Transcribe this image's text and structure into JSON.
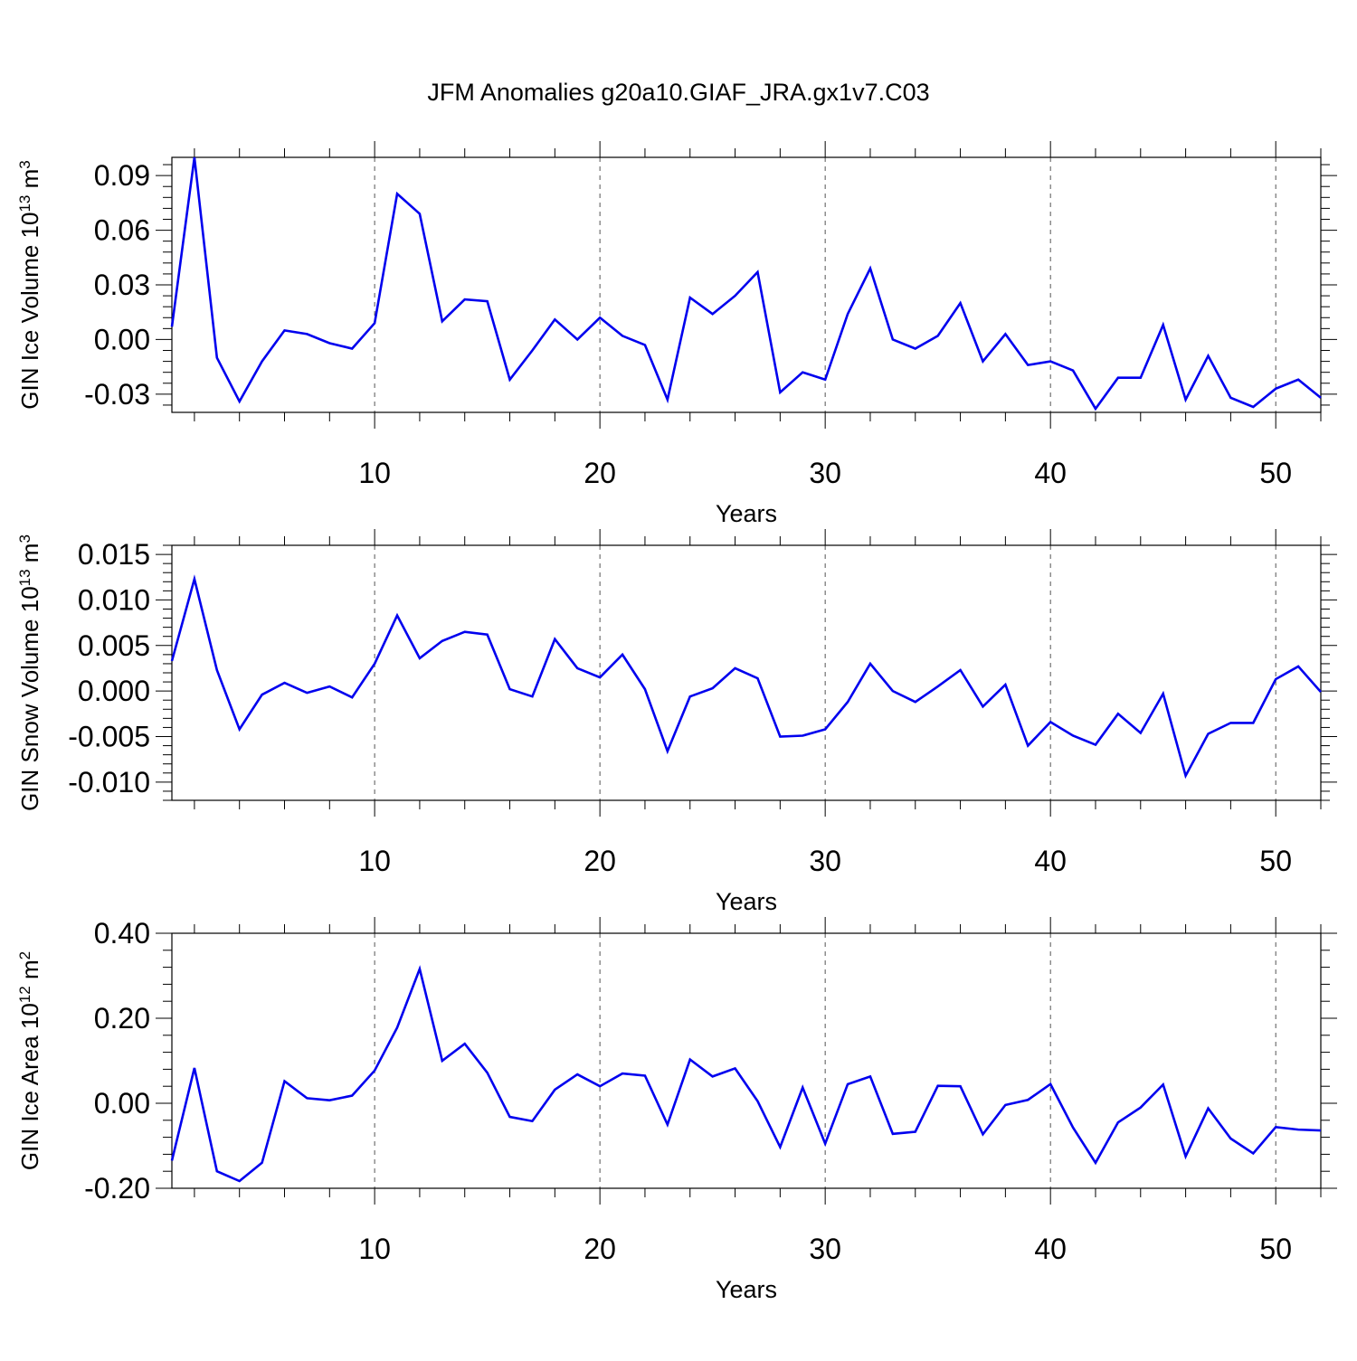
{
  "title": "JFM Anomalies g20a10.GIAF_JRA.gx1v7.C03",
  "colors": {
    "line": "#0000ee",
    "axis": "#000000",
    "grid": "#555555"
  },
  "chart_data": [
    {
      "type": "line",
      "name": "ice-volume",
      "ylabel": {
        "main": "GIN Ice Volume 10",
        "sup": "13",
        "mid": " m",
        "sup2": "3"
      },
      "xlabel": "Years",
      "xlim": [
        1,
        52
      ],
      "xticks": [
        10,
        20,
        30,
        40,
        50
      ],
      "xtick_labels": [
        "10",
        "20",
        "30",
        "40",
        "50"
      ],
      "ylim": [
        -0.04,
        0.1
      ],
      "yticks": [
        -0.03,
        0.0,
        0.03,
        0.06,
        0.09
      ],
      "ytick_labels": [
        "-0.03",
        "0.00",
        "0.03",
        "0.06",
        "0.09"
      ],
      "x": [
        1,
        2,
        3,
        4,
        5,
        6,
        7,
        8,
        9,
        10,
        11,
        12,
        13,
        14,
        15,
        16,
        17,
        18,
        19,
        20,
        21,
        22,
        23,
        24,
        25,
        26,
        27,
        28,
        29,
        30,
        31,
        32,
        33,
        34,
        35,
        36,
        37,
        38,
        39,
        40,
        41,
        42,
        43,
        44,
        45,
        46,
        47,
        48,
        49,
        50,
        51,
        52
      ],
      "values": [
        0.007,
        0.1,
        -0.01,
        -0.034,
        -0.012,
        0.005,
        0.003,
        -0.002,
        -0.005,
        0.009,
        0.08,
        0.069,
        0.01,
        0.022,
        0.021,
        -0.022,
        -0.006,
        0.011,
        0.0,
        0.012,
        0.002,
        -0.003,
        -0.033,
        0.023,
        0.014,
        0.024,
        0.037,
        -0.029,
        -0.018,
        -0.022,
        0.014,
        0.039,
        0.0,
        -0.005,
        0.002,
        0.02,
        -0.012,
        0.003,
        -0.014,
        -0.012,
        -0.017,
        -0.038,
        -0.021,
        -0.021,
        0.008,
        -0.033,
        -0.009,
        -0.032,
        -0.037,
        -0.027,
        -0.022,
        -0.032
      ]
    },
    {
      "type": "line",
      "name": "snow-volume",
      "ylabel": {
        "main": "GIN Snow Volume 10",
        "sup": "13",
        "mid": " m",
        "sup2": "3"
      },
      "xlabel": "Years",
      "xlim": [
        1,
        52
      ],
      "xticks": [
        10,
        20,
        30,
        40,
        50
      ],
      "xtick_labels": [
        "10",
        "20",
        "30",
        "40",
        "50"
      ],
      "ylim": [
        -0.012,
        0.016
      ],
      "yticks": [
        -0.01,
        -0.005,
        0.0,
        0.005,
        0.01,
        0.015
      ],
      "ytick_labels": [
        "-0.010",
        "-0.005",
        "0.000",
        "0.005",
        "0.010",
        "0.015"
      ],
      "x": [
        1,
        2,
        3,
        4,
        5,
        6,
        7,
        8,
        9,
        10,
        11,
        12,
        13,
        14,
        15,
        16,
        17,
        18,
        19,
        20,
        21,
        22,
        23,
        24,
        25,
        26,
        27,
        28,
        29,
        30,
        31,
        32,
        33,
        34,
        35,
        36,
        37,
        38,
        39,
        40,
        41,
        42,
        43,
        44,
        45,
        46,
        47,
        48,
        49,
        50,
        51,
        52
      ],
      "values": [
        0.0033,
        0.0123,
        0.0023,
        -0.0042,
        -0.0004,
        0.0009,
        -0.0002,
        0.0005,
        -0.0007,
        0.003,
        0.0083,
        0.0036,
        0.0055,
        0.0065,
        0.0062,
        0.0002,
        -0.0006,
        0.0057,
        0.0025,
        0.0015,
        0.004,
        0.0002,
        -0.0066,
        -0.0006,
        0.0003,
        0.0025,
        0.0014,
        -0.005,
        -0.0049,
        -0.0042,
        -0.0012,
        0.003,
        0.0,
        -0.0012,
        0.0005,
        0.0023,
        -0.0017,
        0.0007,
        -0.006,
        -0.0034,
        -0.0049,
        -0.0059,
        -0.0025,
        -0.0046,
        -0.0003,
        -0.0093,
        -0.0047,
        -0.0035,
        -0.0035,
        0.0013,
        0.0027,
        -0.0001
      ]
    },
    {
      "type": "line",
      "name": "ice-area",
      "ylabel": {
        "main": "GIN Ice Area 10",
        "sup": "12",
        "mid": " m",
        "sup2": "2"
      },
      "xlabel": "Years",
      "xlim": [
        1,
        52
      ],
      "xticks": [
        10,
        20,
        30,
        40,
        50
      ],
      "xtick_labels": [
        "10",
        "20",
        "30",
        "40",
        "50"
      ],
      "ylim": [
        -0.2,
        0.4
      ],
      "yticks": [
        -0.2,
        0.0,
        0.2,
        0.4
      ],
      "ytick_labels": [
        "-0.20",
        "0.00",
        "0.20",
        "0.40"
      ],
      "x": [
        1,
        2,
        3,
        4,
        5,
        6,
        7,
        8,
        9,
        10,
        11,
        12,
        13,
        14,
        15,
        16,
        17,
        18,
        19,
        20,
        21,
        22,
        23,
        24,
        25,
        26,
        27,
        28,
        29,
        30,
        31,
        32,
        33,
        34,
        35,
        36,
        37,
        38,
        39,
        40,
        41,
        42,
        43,
        44,
        45,
        46,
        47,
        48,
        49,
        50,
        51,
        52
      ],
      "values": [
        -0.135,
        0.083,
        -0.16,
        -0.183,
        -0.14,
        0.052,
        0.012,
        0.007,
        0.018,
        0.077,
        0.178,
        0.316,
        0.1,
        0.14,
        0.072,
        -0.032,
        -0.042,
        0.032,
        0.068,
        0.04,
        0.07,
        0.065,
        -0.05,
        0.103,
        0.063,
        0.082,
        0.005,
        -0.103,
        0.037,
        -0.095,
        0.045,
        0.063,
        -0.072,
        -0.067,
        0.041,
        0.04,
        -0.073,
        -0.004,
        0.008,
        0.045,
        -0.057,
        -0.14,
        -0.045,
        -0.01,
        0.044,
        -0.125,
        -0.012,
        -0.083,
        -0.118,
        -0.056,
        -0.062,
        -0.064
      ]
    }
  ]
}
